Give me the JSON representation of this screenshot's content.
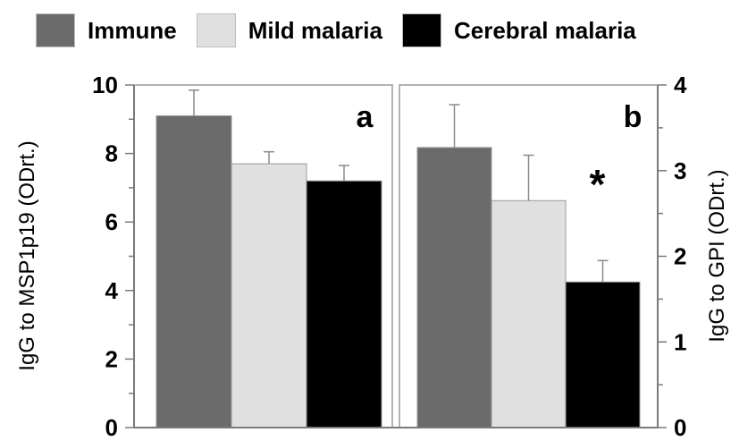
{
  "legend": [
    {
      "label": "Immune",
      "color": "#6b6b6b"
    },
    {
      "label": "Mild malaria",
      "color": "#e0e0e0"
    },
    {
      "label": "Cerebral malaria",
      "color": "#000000"
    }
  ],
  "chart_data": [
    {
      "type": "bar",
      "panel_label": "a",
      "ylabel": "IgG to MSP1p19 (ODrt.)",
      "ylim": [
        0,
        10
      ],
      "yticks": [
        "0",
        "2",
        "4",
        "6",
        "8",
        "10"
      ],
      "y_axis_side": "left",
      "categories": [
        "Immune",
        "Mild malaria",
        "Cerebral malaria"
      ],
      "values": [
        9.1,
        7.7,
        7.2
      ],
      "errors": [
        0.75,
        0.35,
        0.45
      ],
      "colors": [
        "#6b6b6b",
        "#e0e0e0",
        "#000000"
      ],
      "annotations": []
    },
    {
      "type": "bar",
      "panel_label": "b",
      "ylabel": "IgG to GPI (ODrt.)",
      "ylim": [
        0,
        4
      ],
      "yticks": [
        "0",
        "1",
        "2",
        "3",
        "4"
      ],
      "y_axis_side": "right",
      "categories": [
        "Immune",
        "Mild malaria",
        "Cerebral malaria"
      ],
      "values": [
        3.27,
        2.65,
        1.7
      ],
      "errors": [
        0.5,
        0.53,
        0.25
      ],
      "colors": [
        "#6b6b6b",
        "#e0e0e0",
        "#000000"
      ],
      "annotations": [
        {
          "text": "*",
          "category": "Cerebral malaria"
        }
      ]
    }
  ]
}
